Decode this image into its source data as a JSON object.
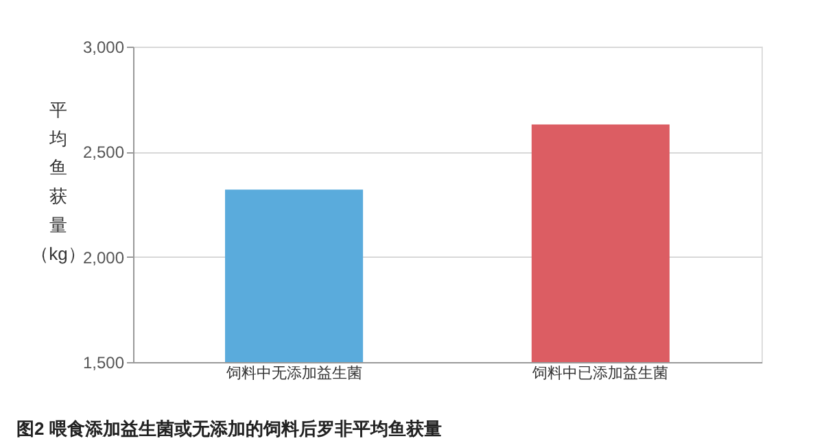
{
  "chart_data": {
    "type": "bar",
    "title": "图2 喂食添加益生菌或无添加的饲料后罗非平均鱼获量",
    "ylabel": "平均鱼获量（kg）",
    "categories": [
      "饲料中无添加益生菌",
      "饲料中已添加益生菌"
    ],
    "values": [
      2320,
      2630
    ],
    "colors": [
      "#5aabdc",
      "#dc5d63"
    ],
    "ylim": [
      1500,
      3000
    ],
    "yticks": [
      {
        "value": 1500,
        "label": "1,500"
      },
      {
        "value": 2000,
        "label": "2,000"
      },
      {
        "value": 2500,
        "label": "2,500"
      },
      {
        "value": 3000,
        "label": "3,000"
      }
    ],
    "grid": "y"
  }
}
